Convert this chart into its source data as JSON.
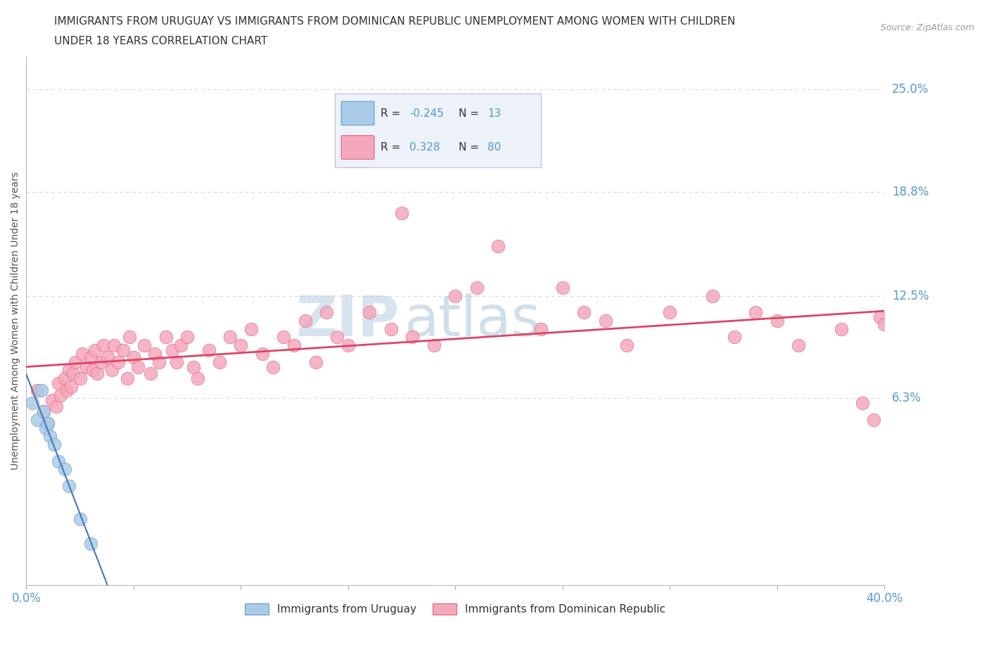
{
  "title_line1": "IMMIGRANTS FROM URUGUAY VS IMMIGRANTS FROM DOMINICAN REPUBLIC UNEMPLOYMENT AMONG WOMEN WITH CHILDREN",
  "title_line2": "UNDER 18 YEARS CORRELATION CHART",
  "source_text": "Source: ZipAtlas.com",
  "ylabel": "Unemployment Among Women with Children Under 18 years",
  "xlim": [
    0.0,
    0.4
  ],
  "ylim": [
    -0.05,
    0.27
  ],
  "ytick_right_labels": [
    "25.0%",
    "18.8%",
    "12.5%",
    "6.3%"
  ],
  "ytick_right_values": [
    0.25,
    0.188,
    0.125,
    0.063
  ],
  "hlines": [
    0.25,
    0.188,
    0.125,
    0.063
  ],
  "watermark_zip": "ZIP",
  "watermark_atlas": "atlas",
  "uruguay_color": "#aacce8",
  "dominican_color": "#f5a8bc",
  "uruguay_edge_color": "#6699cc",
  "dominican_edge_color": "#e06080",
  "uruguay_line_color": "#4477bb",
  "dominican_line_color": "#dd4466",
  "uruguay_R": -0.245,
  "uruguay_N": 13,
  "dominican_R": 0.328,
  "dominican_N": 80,
  "uruguay_scatter_x": [
    0.003,
    0.005,
    0.007,
    0.008,
    0.009,
    0.01,
    0.011,
    0.013,
    0.015,
    0.018,
    0.02,
    0.025,
    0.03
  ],
  "uruguay_scatter_y": [
    0.06,
    0.05,
    0.068,
    0.055,
    0.045,
    0.048,
    0.04,
    0.035,
    0.025,
    0.02,
    0.01,
    -0.01,
    -0.025
  ],
  "dominican_scatter_x": [
    0.005,
    0.008,
    0.01,
    0.012,
    0.014,
    0.015,
    0.016,
    0.018,
    0.019,
    0.02,
    0.021,
    0.022,
    0.023,
    0.025,
    0.026,
    0.028,
    0.03,
    0.031,
    0.032,
    0.033,
    0.035,
    0.036,
    0.038,
    0.04,
    0.041,
    0.043,
    0.045,
    0.047,
    0.048,
    0.05,
    0.052,
    0.055,
    0.058,
    0.06,
    0.062,
    0.065,
    0.068,
    0.07,
    0.072,
    0.075,
    0.078,
    0.08,
    0.085,
    0.09,
    0.095,
    0.1,
    0.105,
    0.11,
    0.115,
    0.12,
    0.125,
    0.13,
    0.135,
    0.14,
    0.145,
    0.15,
    0.16,
    0.17,
    0.175,
    0.18,
    0.19,
    0.2,
    0.21,
    0.22,
    0.24,
    0.25,
    0.26,
    0.27,
    0.28,
    0.3,
    0.32,
    0.33,
    0.34,
    0.35,
    0.36,
    0.38,
    0.39,
    0.395,
    0.398,
    0.4
  ],
  "dominican_scatter_y": [
    0.068,
    0.055,
    0.048,
    0.062,
    0.058,
    0.072,
    0.065,
    0.075,
    0.068,
    0.08,
    0.07,
    0.078,
    0.085,
    0.075,
    0.09,
    0.082,
    0.088,
    0.08,
    0.092,
    0.078,
    0.085,
    0.095,
    0.088,
    0.08,
    0.095,
    0.085,
    0.092,
    0.075,
    0.1,
    0.088,
    0.082,
    0.095,
    0.078,
    0.09,
    0.085,
    0.1,
    0.092,
    0.085,
    0.095,
    0.1,
    0.082,
    0.075,
    0.092,
    0.085,
    0.1,
    0.095,
    0.105,
    0.09,
    0.082,
    0.1,
    0.095,
    0.11,
    0.085,
    0.115,
    0.1,
    0.095,
    0.115,
    0.105,
    0.175,
    0.1,
    0.095,
    0.125,
    0.13,
    0.155,
    0.105,
    0.13,
    0.115,
    0.11,
    0.095,
    0.115,
    0.125,
    0.1,
    0.115,
    0.11,
    0.095,
    0.105,
    0.06,
    0.05,
    0.112,
    0.108
  ],
  "background_color": "#ffffff",
  "grid_color": "#cccccc",
  "title_color": "#333333",
  "axis_label_color": "#555555",
  "right_tick_color": "#5599cc",
  "legend_facecolor": "#eef2fa",
  "legend_edge_color": "#bbbbdd"
}
